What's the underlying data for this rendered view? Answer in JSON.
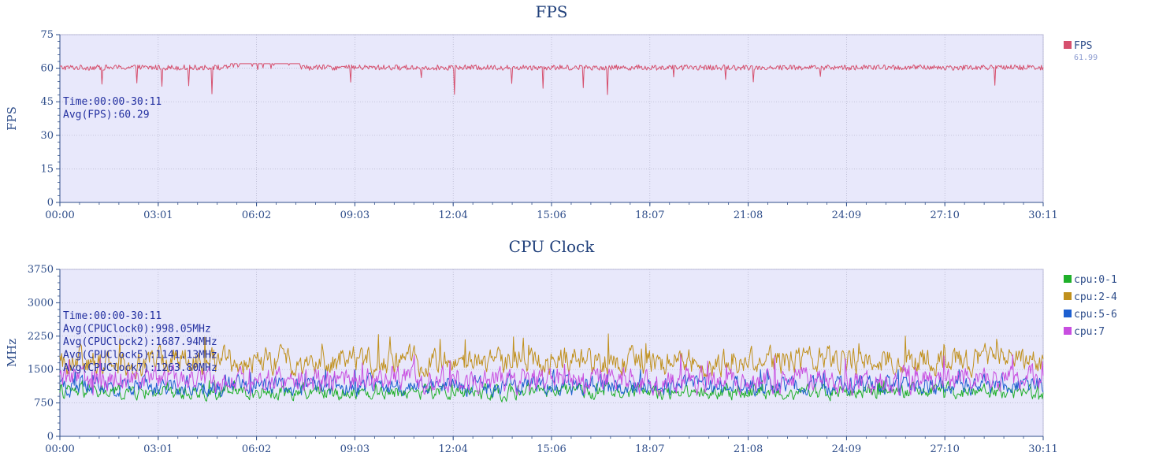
{
  "chart_data": [
    {
      "type": "line",
      "title": "FPS",
      "ylabel": "FPS",
      "xlabel": "",
      "x_ticks": [
        "00:00",
        "03:01",
        "06:02",
        "09:03",
        "12:04",
        "15:06",
        "18:07",
        "21:08",
        "24:09",
        "27:10",
        "30:11"
      ],
      "ylim": [
        0,
        75
      ],
      "y_ticks": [
        0,
        15,
        30,
        45,
        60,
        75
      ],
      "grid": true,
      "legend_position": "right-top",
      "series": [
        {
          "name": "FPS",
          "color": "#d6506e",
          "legend_value": "61.99",
          "base": 60.3,
          "spread": 1.2,
          "dip_rate": 0.012,
          "dip_min": 48,
          "dip_max": 57,
          "range": [
            48,
            62
          ]
        }
      ],
      "annotation": [
        "Time:00:00-30:11",
        "Avg(FPS):60.29"
      ]
    },
    {
      "type": "line",
      "title": "CPU Clock",
      "ylabel": "MHz",
      "xlabel": "",
      "x_ticks": [
        "00:00",
        "03:01",
        "06:02",
        "09:03",
        "12:04",
        "15:06",
        "18:07",
        "21:08",
        "24:09",
        "27:10",
        "30:11"
      ],
      "ylim": [
        0,
        3750
      ],
      "y_ticks": [
        0,
        750,
        1500,
        2250,
        3000,
        3750
      ],
      "grid": true,
      "legend_position": "right-top",
      "series": [
        {
          "name": "cpu:0-1",
          "color": "#1fb02a",
          "base": 998,
          "spread": 180,
          "range": [
            500,
            1250
          ]
        },
        {
          "name": "cpu:2-4",
          "color": "#c0901c",
          "base": 1688,
          "spread": 320,
          "range": [
            1000,
            2700
          ]
        },
        {
          "name": "cpu:5-6",
          "color": "#1d5fd0",
          "base": 1141,
          "spread": 230,
          "range": [
            450,
            1500
          ]
        },
        {
          "name": "cpu:7",
          "color": "#c84ee0",
          "base": 1264,
          "spread": 300,
          "range": [
            600,
            3000
          ]
        }
      ],
      "annotation": [
        "Time:00:00-30:11",
        "Avg(CPUClock0):998.05MHz",
        "Avg(CPUClock2):1687.94MHz",
        "Avg(CPUClock5):1141.13MHz",
        "Avg(CPUClock7):1263.80MHz"
      ]
    }
  ]
}
